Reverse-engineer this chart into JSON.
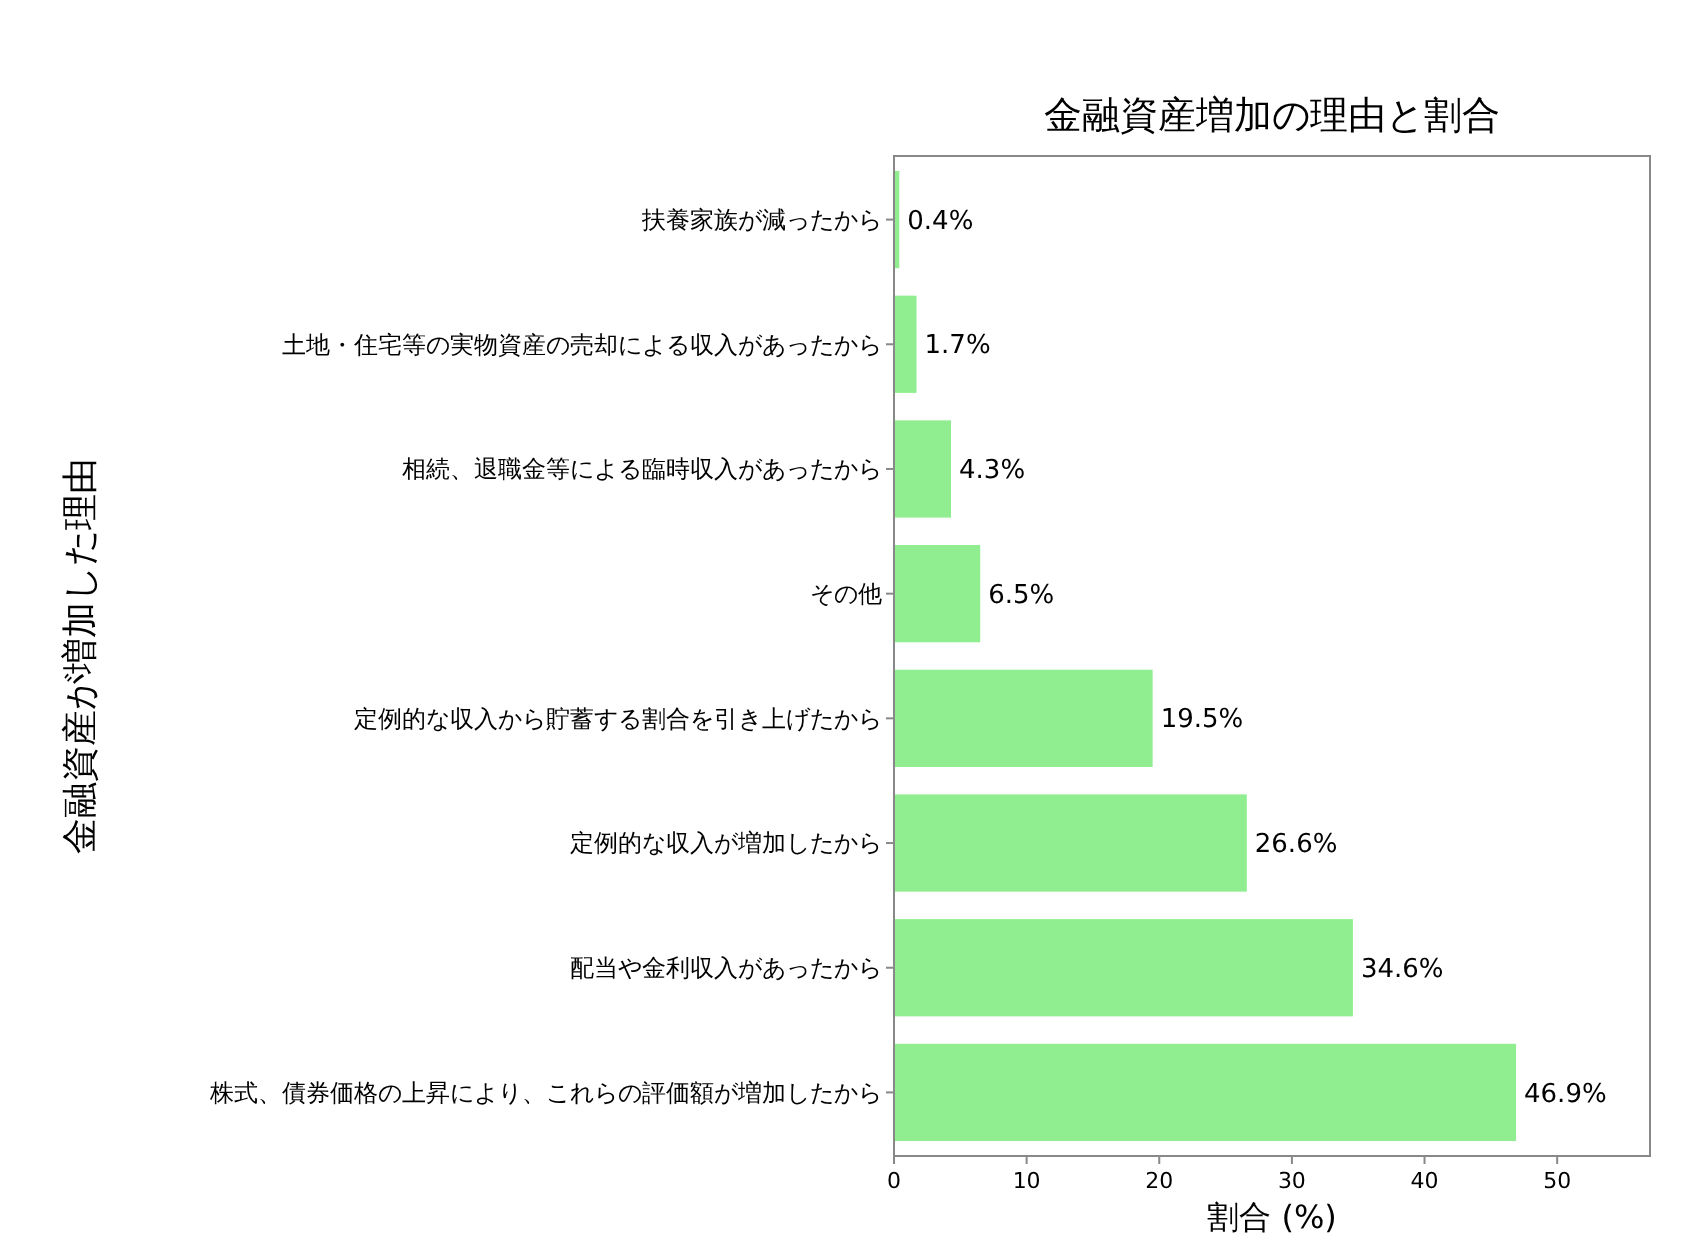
{
  "chart_data": {
    "type": "bar",
    "orientation": "horizontal",
    "title": "金融資産増加の理由と割合",
    "xlabel": "割合 (%)",
    "ylabel": "金融資産が増加した理由",
    "categories": [
      "扶養家族が減ったから",
      "土地・住宅等の実物資産の売却による収入があったから",
      "相続、退職金等による臨時収入があったから",
      "その他",
      "定例的な収入から貯蓄する割合を引き上げたから",
      "定例的な収入が増加したから",
      "配当や金利収入があったから",
      "株式、債券価格の上昇により、これらの評価額が増加したから"
    ],
    "values": [
      0.4,
      1.7,
      4.3,
      6.5,
      19.5,
      26.6,
      34.6,
      46.9
    ],
    "value_labels": [
      "0.4%",
      "1.7%",
      "4.3%",
      "6.5%",
      "19.5%",
      "26.6%",
      "34.6%",
      "46.9%"
    ],
    "color": "#90ee90",
    "xlim": [
      0,
      57
    ],
    "xticks": [
      0,
      10,
      20,
      30,
      40,
      50
    ]
  }
}
